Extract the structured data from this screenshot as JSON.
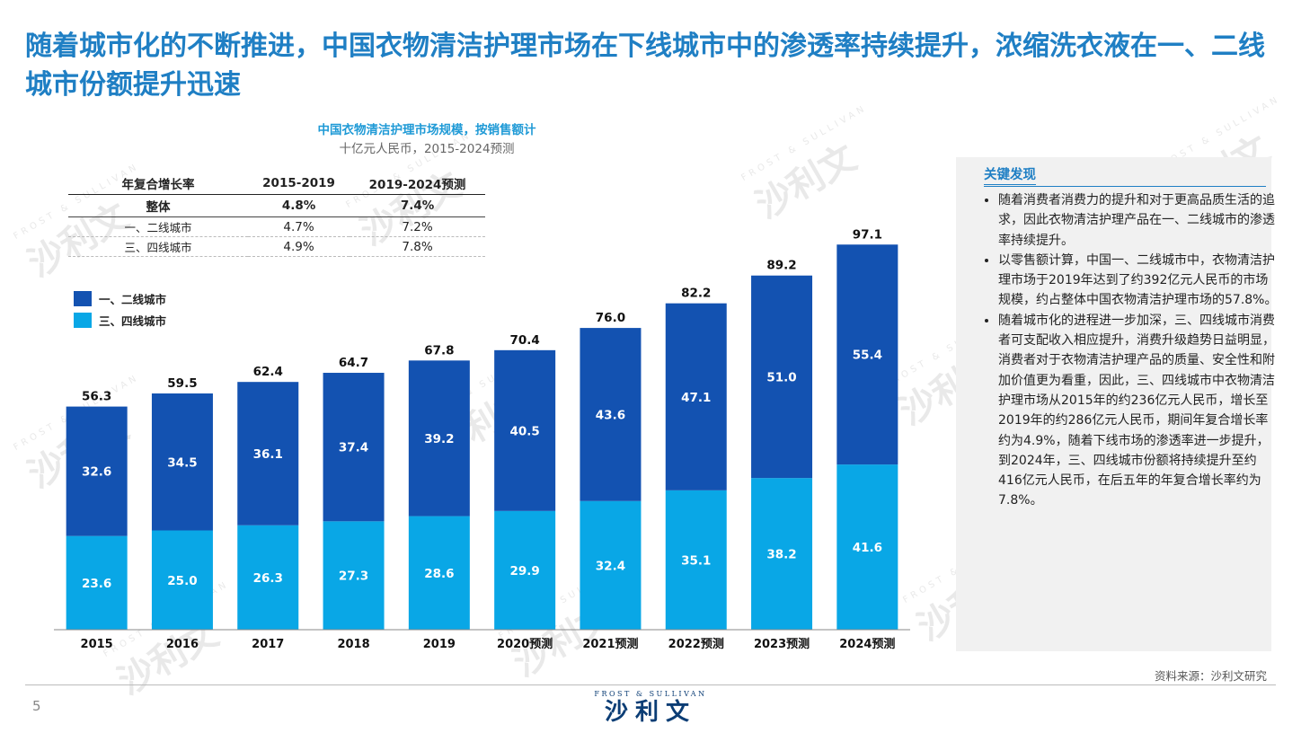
{
  "headline": "随着城市化的不断推进，中国衣物清洁护理市场在下线城市中的渗透率持续提升，浓缩洗衣液在一、二线城市份额提升迅速",
  "watermark": {
    "en": "FROST & SULLIVAN",
    "cn": "沙利文"
  },
  "chart_data": {
    "type": "bar",
    "stacked": true,
    "title": "中国衣物清洁护理市场规模，按销售额计",
    "subtitle": "十亿元人民币，2015-2024预测",
    "categories": [
      "2015",
      "2016",
      "2017",
      "2018",
      "2019",
      "2020预测",
      "2021预测",
      "2022预测",
      "2023预测",
      "2024预测"
    ],
    "series": [
      {
        "name": "三、四线城市",
        "color": "#09a7e6",
        "values": [
          23.6,
          25.0,
          26.3,
          27.3,
          28.6,
          29.9,
          32.4,
          35.1,
          38.2,
          41.6
        ]
      },
      {
        "name": "一、二线城市",
        "color": "#1352b1",
        "values": [
          32.6,
          34.5,
          36.1,
          37.4,
          39.2,
          40.5,
          43.6,
          47.1,
          51.0,
          55.4
        ]
      }
    ],
    "totals": [
      56.3,
      59.5,
      62.4,
      64.7,
      67.8,
      70.4,
      76.0,
      82.2,
      89.2,
      97.1
    ],
    "ylim": [
      0,
      100
    ],
    "grid": false,
    "legend_position": "top-left",
    "legend": [
      {
        "label": "一、二线城市",
        "color": "#1352b1"
      },
      {
        "label": "三、四线城市",
        "color": "#09a7e6"
      }
    ]
  },
  "cagr_table": {
    "headers": [
      "年复合增长率",
      "2015-2019",
      "2019-2024预测"
    ],
    "rows": [
      {
        "label": "整体",
        "a": "4.8%",
        "b": "7.4%"
      },
      {
        "label": "一、二线城市",
        "a": "4.7%",
        "b": "7.2%"
      },
      {
        "label": "三、四线城市",
        "a": "4.9%",
        "b": "7.8%"
      }
    ]
  },
  "findings": {
    "title": "关键发现",
    "items": [
      "随着消费者消费力的提升和对于更高品质生活的追求，因此衣物清洁护理产品在一、二线城市的渗透率持续提升。",
      "以零售额计算，中国一、二线城市中，衣物清洁护理市场于2019年达到了约392亿元人民币的市场规模，约占整体中国衣物清洁护理市场的57.8%。",
      "随着城市化的进程进一步加深，三、四线城市消费者可支配收入相应提升，消费升级趋势日益明显，消费者对于衣物清洁护理产品的质量、安全性和附加价值更为看重，因此，三、四线城市中衣物清洁护理市场从2015年的约236亿元人民币，增长至2019年的约286亿元人民币，期间年复合增长率约为4.9%，随着下线市场的渗透率进一步提升，到2024年，三、四线城市份额将持续提升至约416亿元人民币，在后五年的年复合增长率约为7.8%。"
    ]
  },
  "source": "资料来源：沙利文研究",
  "page_number": "5",
  "footer_logo": {
    "en": "FROST & SULLIVAN",
    "cn": "沙利文"
  }
}
